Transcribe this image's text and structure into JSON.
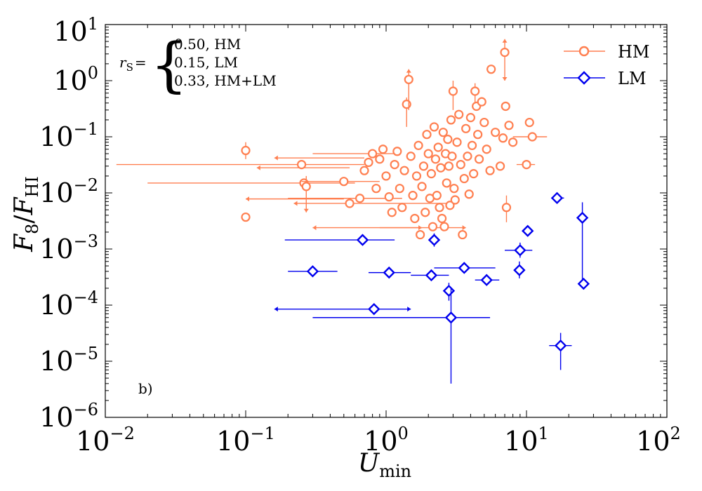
{
  "chart_data": {
    "type": "scatter",
    "xscale": "log",
    "yscale": "log",
    "xlim": [
      0.01,
      100
    ],
    "ylim": [
      1e-06,
      10
    ],
    "xlabel": {
      "main": "U",
      "sub": "min"
    },
    "ylabel": {
      "main": "F",
      "sub1": "8",
      "slash": "/",
      "main2": "F",
      "sub2": "HI"
    },
    "x_ticks": [
      {
        "base": "10",
        "exp": "−2"
      },
      {
        "base": "10",
        "exp": "−1"
      },
      {
        "base": "10",
        "exp": "0"
      },
      {
        "base": "10",
        "exp": "1"
      },
      {
        "base": "10",
        "exp": "2"
      }
    ],
    "y_ticks": [
      {
        "base": "10",
        "exp": "−6"
      },
      {
        "base": "10",
        "exp": "−5"
      },
      {
        "base": "10",
        "exp": "−4"
      },
      {
        "base": "10",
        "exp": "−3"
      },
      {
        "base": "10",
        "exp": "−2"
      },
      {
        "base": "10",
        "exp": "−1"
      },
      {
        "base": "10",
        "exp": "0"
      },
      {
        "base": "10",
        "exp": "1"
      }
    ],
    "annotation": {
      "symbol": "r",
      "symbol_sub": "S",
      "equals": "=",
      "lines": [
        "0.50, HM",
        "0.15, LM",
        "0.33, HM+LM"
      ]
    },
    "panel_label": "b)",
    "legend": [
      {
        "label": "HM",
        "marker": "circle",
        "color": "#ff7f50"
      },
      {
        "label": "LM",
        "marker": "diamond",
        "color": "#0000ee"
      }
    ],
    "series": [
      {
        "name": "HM",
        "marker": "circle",
        "color": "#ff7f50",
        "points": [
          {
            "x": 0.1,
            "y": 0.057,
            "yerr": [
              0.04,
              0.08
            ]
          },
          {
            "x": 0.1,
            "y": 0.0037
          },
          {
            "x": 0.25,
            "y": 0.032,
            "xerr": [
              0.012,
              0.7
            ]
          },
          {
            "x": 0.26,
            "y": 0.015,
            "xerr": [
              0.02,
              0.6
            ]
          },
          {
            "x": 0.27,
            "y": 0.013,
            "yerr": [
              0.0045,
              0.02
            ],
            "yarrow": "down"
          },
          {
            "x": 0.5,
            "y": 0.016,
            "xerr": [
              0.25,
              0.9
            ]
          },
          {
            "x": 0.55,
            "y": 0.0065
          },
          {
            "x": 0.65,
            "y": 0.008,
            "xerr": [
              0.2,
              1.3
            ]
          },
          {
            "x": 0.7,
            "y": 0.025
          },
          {
            "x": 0.75,
            "y": 0.035
          },
          {
            "x": 0.8,
            "y": 0.05,
            "xerr": [
              0.3,
              1.2
            ]
          },
          {
            "x": 0.85,
            "y": 0.012
          },
          {
            "x": 0.9,
            "y": 0.04
          },
          {
            "x": 0.95,
            "y": 0.06
          },
          {
            "x": 1.0,
            "y": 0.02
          },
          {
            "x": 1.05,
            "y": 0.0085
          },
          {
            "x": 1.1,
            "y": 0.0045
          },
          {
            "x": 1.15,
            "y": 0.032
          },
          {
            "x": 1.2,
            "y": 0.055
          },
          {
            "x": 1.25,
            "y": 0.012
          },
          {
            "x": 1.3,
            "y": 0.0055
          },
          {
            "x": 1.35,
            "y": 0.025
          },
          {
            "x": 1.4,
            "y": 0.38,
            "yerr": [
              0.15,
              0.5
            ]
          },
          {
            "x": 1.45,
            "y": 1.05,
            "yerr": [
              0.3,
              1.6
            ],
            "yarrow": "up"
          },
          {
            "x": 1.5,
            "y": 0.045
          },
          {
            "x": 1.55,
            "y": 0.009
          },
          {
            "x": 1.6,
            "y": 0.0035
          },
          {
            "x": 1.65,
            "y": 0.02
          },
          {
            "x": 1.7,
            "y": 0.07
          },
          {
            "x": 1.75,
            "y": 0.0018
          },
          {
            "x": 1.8,
            "y": 0.013
          },
          {
            "x": 1.85,
            "y": 0.03
          },
          {
            "x": 1.9,
            "y": 0.0045
          },
          {
            "x": 1.95,
            "y": 0.11
          },
          {
            "x": 2.0,
            "y": 0.05
          },
          {
            "x": 2.05,
            "y": 0.008
          },
          {
            "x": 2.1,
            "y": 0.022
          },
          {
            "x": 2.15,
            "y": 0.0025
          },
          {
            "x": 2.2,
            "y": 0.15
          },
          {
            "x": 2.25,
            "y": 0.04
          },
          {
            "x": 2.3,
            "y": 0.009
          },
          {
            "x": 2.35,
            "y": 0.065
          },
          {
            "x": 2.4,
            "y": 0.0055
          },
          {
            "x": 2.45,
            "y": 0.028
          },
          {
            "x": 2.5,
            "y": 0.0035
          },
          {
            "x": 2.55,
            "y": 0.12
          },
          {
            "x": 2.6,
            "y": 0.0025
          },
          {
            "x": 2.65,
            "y": 0.05
          },
          {
            "x": 2.7,
            "y": 0.015
          },
          {
            "x": 2.75,
            "y": 0.09
          },
          {
            "x": 2.8,
            "y": 0.03
          },
          {
            "x": 2.85,
            "y": 0.006
          },
          {
            "x": 2.9,
            "y": 0.2
          },
          {
            "x": 2.95,
            "y": 0.045
          },
          {
            "x": 3.0,
            "y": 0.65,
            "yerr": [
              0.3,
              1.0
            ]
          },
          {
            "x": 3.05,
            "y": 0.012
          },
          {
            "x": 3.1,
            "y": 0.0075
          },
          {
            "x": 3.2,
            "y": 0.08
          },
          {
            "x": 3.3,
            "y": 0.25
          },
          {
            "x": 3.4,
            "y": 0.032
          },
          {
            "x": 3.5,
            "y": 0.0018
          },
          {
            "x": 3.6,
            "y": 0.018
          },
          {
            "x": 3.7,
            "y": 0.14
          },
          {
            "x": 3.8,
            "y": 0.045
          },
          {
            "x": 3.9,
            "y": 0.0095
          },
          {
            "x": 4.0,
            "y": 0.22
          },
          {
            "x": 4.1,
            "y": 0.07
          },
          {
            "x": 4.2,
            "y": 0.022
          },
          {
            "x": 4.3,
            "y": 0.65,
            "yerr": [
              0.4,
              0.9
            ]
          },
          {
            "x": 4.4,
            "y": 0.35
          },
          {
            "x": 4.5,
            "y": 0.11
          },
          {
            "x": 4.6,
            "y": 0.04
          },
          {
            "x": 4.8,
            "y": 0.42
          },
          {
            "x": 5.0,
            "y": 0.18
          },
          {
            "x": 5.2,
            "y": 0.06
          },
          {
            "x": 5.5,
            "y": 0.025
          },
          {
            "x": 5.6,
            "y": 1.6,
            "xerr": [
              5.2,
              6.0
            ]
          },
          {
            "x": 6.0,
            "y": 0.12
          },
          {
            "x": 6.5,
            "y": 0.03
          },
          {
            "x": 6.8,
            "y": 0.095
          },
          {
            "x": 7.0,
            "y": 3.2,
            "yerr": [
              1.0,
              5.5
            ],
            "yarrow": "both"
          },
          {
            "x": 7.1,
            "y": 0.35
          },
          {
            "x": 7.2,
            "y": 0.0055,
            "yerr": [
              0.003,
              0.009
            ]
          },
          {
            "x": 7.5,
            "y": 0.16
          },
          {
            "x": 8.0,
            "y": 0.08
          },
          {
            "x": 10.0,
            "y": 0.032,
            "xerr": [
              8.5,
              11.5
            ]
          },
          {
            "x": 10.5,
            "y": 0.18
          },
          {
            "x": 11.0,
            "y": 0.1,
            "xerr": [
              8.0,
              14.0
            ]
          }
        ]
      },
      {
        "name": "LM",
        "marker": "diamond",
        "color": "#0000ee",
        "points": [
          {
            "x": 0.3,
            "y": 0.0004,
            "xerr": [
              0.2,
              0.45
            ]
          },
          {
            "x": 0.68,
            "y": 0.00145,
            "xerr": [
              0.19,
              1.15
            ]
          },
          {
            "x": 0.82,
            "y": 8.5e-05,
            "xerr": [
              0.16,
              1.5
            ],
            "xarrow": "both"
          },
          {
            "x": 1.05,
            "y": 0.00038,
            "xerr": [
              0.75,
              1.5
            ]
          },
          {
            "x": 2.2,
            "y": 0.00145,
            "yerr": [
              0.0011,
              0.0019
            ]
          },
          {
            "x": 2.1,
            "y": 0.00034,
            "xerr": [
              1.5,
              2.8
            ]
          },
          {
            "x": 2.8,
            "y": 0.00018,
            "yerr": [
              0.00012,
              0.00025
            ]
          },
          {
            "x": 2.9,
            "y": 6e-05,
            "xerr": [
              0.3,
              5.5
            ],
            "yerr": [
              4e-06,
              0.0002
            ]
          },
          {
            "x": 3.6,
            "y": 0.00046,
            "xerr": [
              2.2,
              6.0
            ]
          },
          {
            "x": 5.2,
            "y": 0.00028,
            "xerr": [
              4.3,
              6.4
            ]
          },
          {
            "x": 8.9,
            "y": 0.00042,
            "yerr": [
              0.0003,
              0.0006
            ]
          },
          {
            "x": 9.0,
            "y": 0.00095,
            "xerr": [
              7.0,
              11.0
            ],
            "yerr": [
              0.0007,
              0.0013
            ]
          },
          {
            "x": 10.2,
            "y": 0.0021
          },
          {
            "x": 16.5,
            "y": 0.0081,
            "xerr": [
              15.0,
              18.5
            ]
          },
          {
            "x": 17.5,
            "y": 1.9e-05,
            "xerr": [
              14.5,
              21.0
            ],
            "yerr": [
              7e-06,
              3.2e-05
            ]
          },
          {
            "x": 25.0,
            "y": 0.0036,
            "yerr": [
              0.00024,
              0.0068
            ]
          },
          {
            "x": 25.5,
            "y": 0.00024
          }
        ]
      },
      {
        "name": "HM-arrows",
        "marker": "none",
        "color": "#ff7f50",
        "points": [
          {
            "x": 0.5,
            "y": 0.0078,
            "xerr": [
              0.1,
              0.5
            ],
            "xarrow": "left"
          },
          {
            "x": 0.55,
            "y": 0.028,
            "xerr": [
              0.12,
              0.55
            ],
            "xarrow": "left"
          },
          {
            "x": 0.7,
            "y": 0.042,
            "xerr": [
              0.16,
              0.7
            ],
            "xarrow": "left"
          },
          {
            "x": 0.95,
            "y": 0.0024,
            "xerr": [
              0.3,
              1.8
            ],
            "xarrow": "both"
          },
          {
            "x": 1.2,
            "y": 0.0065,
            "xerr": [
              0.22,
              3.0
            ],
            "xarrow": "left"
          },
          {
            "x": 2.0,
            "y": 0.0024,
            "xerr": [
              0.9,
              3.7
            ],
            "xarrow": "right"
          }
        ]
      }
    ]
  }
}
